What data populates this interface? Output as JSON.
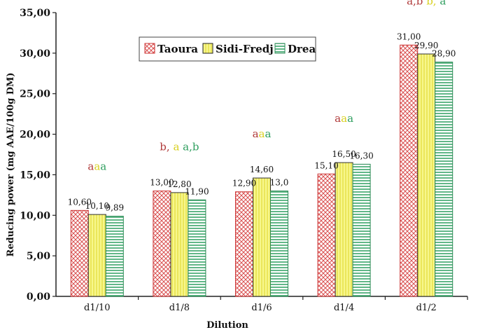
{
  "chart_data": {
    "type": "bar",
    "title": "",
    "xlabel": "Dilution",
    "ylabel": "Reducing power (mg AAE/100g DM)",
    "ylim": [
      0,
      35
    ],
    "yticks": [
      "0,00",
      "5,00",
      "10,00",
      "15,00",
      "20,00",
      "25,00",
      "30,00",
      "35,00"
    ],
    "categories": [
      "d1/10",
      "d1/8",
      "d1/6",
      "d1/4",
      "d1/2"
    ],
    "series": [
      {
        "name": "Taoura",
        "color": "#e06b6b",
        "pattern": "crosshatch",
        "values": [
          10.6,
          13.0,
          12.9,
          15.1,
          31.0
        ],
        "labels": [
          "10,60",
          "13,00",
          "12,90",
          "15,10",
          "31,00"
        ]
      },
      {
        "name": "Sidi-Fredj",
        "color": "#f2f27a",
        "pattern": "vertical-lines",
        "values": [
          10.1,
          12.8,
          14.6,
          16.5,
          29.9
        ],
        "labels": [
          "10,10",
          "12,80",
          "14,60",
          "16,50",
          "29,90"
        ]
      },
      {
        "name": "Drea",
        "color": "#4caf7d",
        "pattern": "horizontal-lines",
        "values": [
          9.89,
          11.9,
          13.0,
          16.3,
          28.9
        ],
        "labels": [
          "9,89",
          "11,90",
          "13,0",
          "16,30",
          "28,90"
        ]
      }
    ],
    "significance": [
      [
        "a",
        "a",
        "a"
      ],
      [
        "b,",
        "a",
        "a,b"
      ],
      [
        "a",
        "a",
        "a"
      ],
      [
        "a",
        "a",
        "a"
      ],
      [
        "a,b",
        "b,",
        "a"
      ]
    ],
    "significance_colors": [
      "#b03a3a",
      "#d8d020",
      "#2e9e5e"
    ],
    "grid": false,
    "legend": {
      "position": "top-center",
      "entries": [
        "Taoura",
        "Sidi-Fredj",
        "Drea"
      ]
    }
  }
}
